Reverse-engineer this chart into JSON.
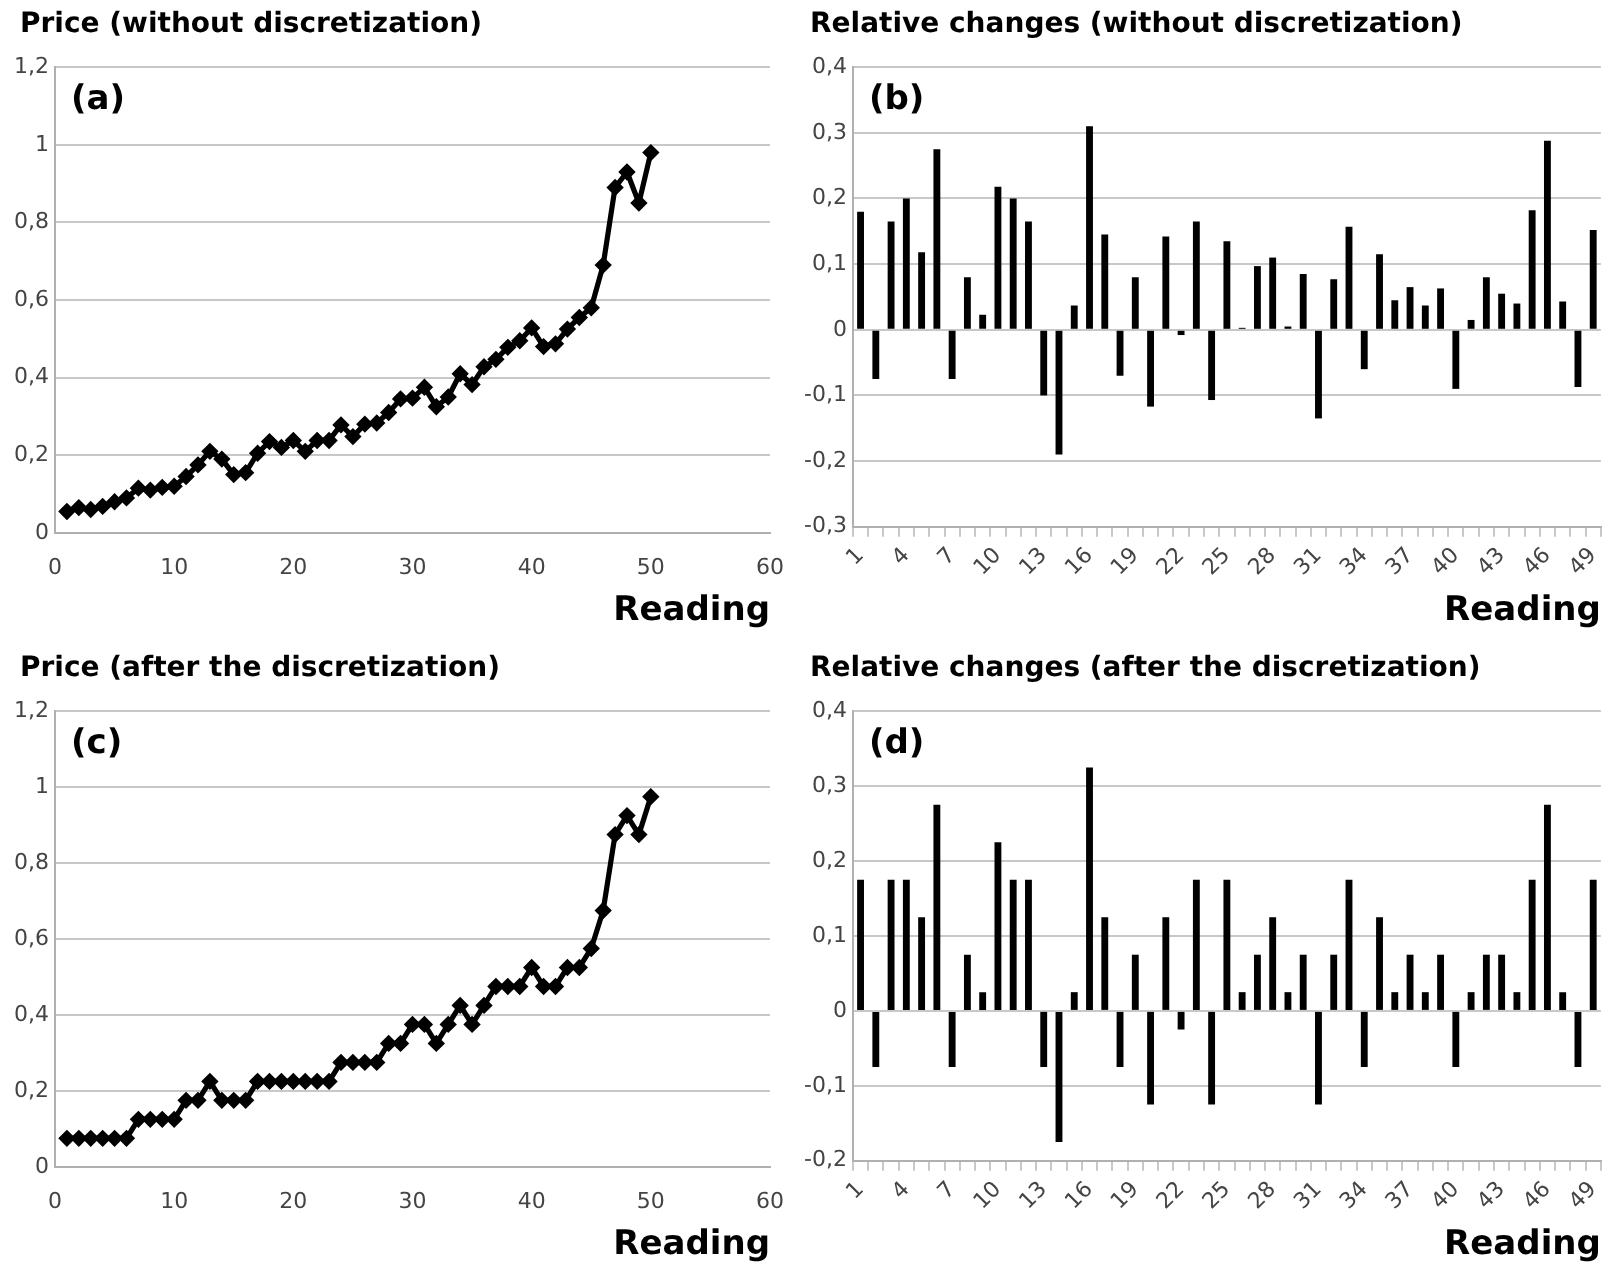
{
  "chart_data": [
    {
      "type": "line",
      "title": "Price (without discretization)",
      "xlabel": "Reading",
      "annotations": [
        "(a)"
      ],
      "grid": "y",
      "legend": false,
      "marker": "diamond",
      "line_style": "solid",
      "xlim": [
        0,
        60
      ],
      "xticks": [
        0,
        10,
        20,
        30,
        40,
        50,
        60
      ],
      "ylim": [
        0,
        1.2
      ],
      "yticks": [
        {
          "value": 0,
          "label": "0"
        },
        {
          "value": 0.2,
          "label": "0,2"
        },
        {
          "value": 0.4,
          "label": "0,4"
        },
        {
          "value": 0.6,
          "label": "0,6"
        },
        {
          "value": 0.8,
          "label": "0,8"
        },
        {
          "value": 1,
          "label": "1"
        },
        {
          "value": 1.2,
          "label": "1,2"
        }
      ],
      "series": [
        {
          "color": "#000000",
          "x": [
            1,
            2,
            3,
            4,
            5,
            6,
            7,
            8,
            9,
            10,
            11,
            12,
            13,
            14,
            15,
            16,
            17,
            18,
            19,
            20,
            21,
            22,
            23,
            24,
            25,
            26,
            27,
            28,
            29,
            30,
            31,
            32,
            33,
            34,
            35,
            36,
            37,
            38,
            39,
            40,
            41,
            42,
            43,
            44,
            45,
            46,
            47,
            48,
            49,
            50
          ],
          "values": [
            0.055,
            0.065,
            0.06,
            0.068,
            0.08,
            0.09,
            0.115,
            0.11,
            0.117,
            0.12,
            0.145,
            0.175,
            0.21,
            0.19,
            0.15,
            0.155,
            0.205,
            0.235,
            0.22,
            0.238,
            0.21,
            0.238,
            0.238,
            0.278,
            0.248,
            0.28,
            0.283,
            0.31,
            0.345,
            0.347,
            0.375,
            0.325,
            0.35,
            0.41,
            0.382,
            0.428,
            0.447,
            0.478,
            0.495,
            0.528,
            0.48,
            0.487,
            0.525,
            0.555,
            0.58,
            0.69,
            0.89,
            0.93,
            0.85,
            0.98
          ]
        }
      ]
    },
    {
      "type": "bar",
      "title": "Relative changes (without discretization)",
      "xlabel": "Reading",
      "annotations": [
        "(b)"
      ],
      "grid": "y",
      "legend": false,
      "ylim": [
        -0.3,
        0.4
      ],
      "yticks": [
        {
          "value": -0.3,
          "label": "-0,3"
        },
        {
          "value": -0.2,
          "label": "-0,2"
        },
        {
          "value": -0.1,
          "label": "-0,1"
        },
        {
          "value": 0,
          "label": "0"
        },
        {
          "value": 0.1,
          "label": "0,1"
        },
        {
          "value": 0.2,
          "label": "0,2"
        },
        {
          "value": 0.3,
          "label": "0,3"
        },
        {
          "value": 0.4,
          "label": "0,4"
        }
      ],
      "categories": [
        "1",
        null,
        null,
        "4",
        null,
        null,
        "7",
        null,
        null,
        "10",
        null,
        null,
        "13",
        null,
        null,
        "16",
        null,
        null,
        "19",
        null,
        null,
        "22",
        null,
        null,
        "25",
        null,
        null,
        "28",
        null,
        null,
        "31",
        null,
        null,
        "34",
        null,
        null,
        "37",
        null,
        null,
        "40",
        null,
        null,
        "43",
        null,
        null,
        "46",
        null,
        null,
        "49"
      ],
      "series": [
        {
          "color": "#000000",
          "values": [
            0.18,
            -0.075,
            0.165,
            0.2,
            0.118,
            0.275,
            -0.075,
            0.08,
            0.023,
            0.218,
            0.2,
            0.165,
            -0.1,
            -0.19,
            0.037,
            0.31,
            0.145,
            -0.07,
            0.08,
            -0.117,
            0.142,
            -0.008,
            0.165,
            -0.107,
            0.135,
            0.003,
            0.097,
            0.11,
            0.005,
            0.085,
            -0.135,
            0.077,
            0.157,
            -0.06,
            0.115,
            0.045,
            0.065,
            0.037,
            0.063,
            -0.09,
            0.015,
            0.08,
            0.055,
            0.04,
            0.182,
            0.288,
            0.043,
            -0.087,
            0.152
          ]
        }
      ]
    },
    {
      "type": "line",
      "title": "Price (after the discretization)",
      "xlabel": "Reading",
      "annotations": [
        "(c)"
      ],
      "grid": "y",
      "legend": false,
      "marker": "diamond",
      "line_style": "solid",
      "xlim": [
        0,
        60
      ],
      "xticks": [
        0,
        10,
        20,
        30,
        40,
        50,
        60
      ],
      "ylim": [
        0,
        1.2
      ],
      "yticks": [
        {
          "value": 0,
          "label": "0"
        },
        {
          "value": 0.2,
          "label": "0,2"
        },
        {
          "value": 0.4,
          "label": "0,4"
        },
        {
          "value": 0.6,
          "label": "0,6"
        },
        {
          "value": 0.8,
          "label": "0,8"
        },
        {
          "value": 1,
          "label": "1"
        },
        {
          "value": 1.2,
          "label": "1,2"
        }
      ],
      "series": [
        {
          "color": "#000000",
          "x": [
            1,
            2,
            3,
            4,
            5,
            6,
            7,
            8,
            9,
            10,
            11,
            12,
            13,
            14,
            15,
            16,
            17,
            18,
            19,
            20,
            21,
            22,
            23,
            24,
            25,
            26,
            27,
            28,
            29,
            30,
            31,
            32,
            33,
            34,
            35,
            36,
            37,
            38,
            39,
            40,
            41,
            42,
            43,
            44,
            45,
            46,
            47,
            48,
            49,
            50
          ],
          "values": [
            0.075,
            0.075,
            0.075,
            0.075,
            0.075,
            0.075,
            0.125,
            0.125,
            0.125,
            0.125,
            0.175,
            0.175,
            0.225,
            0.175,
            0.175,
            0.175,
            0.225,
            0.225,
            0.225,
            0.225,
            0.225,
            0.225,
            0.225,
            0.275,
            0.275,
            0.275,
            0.275,
            0.325,
            0.325,
            0.375,
            0.375,
            0.325,
            0.375,
            0.425,
            0.375,
            0.425,
            0.475,
            0.475,
            0.475,
            0.525,
            0.475,
            0.475,
            0.525,
            0.525,
            0.575,
            0.675,
            0.875,
            0.925,
            0.875,
            0.975
          ]
        }
      ]
    },
    {
      "type": "bar",
      "title": "Relative changes (after the discretization)",
      "xlabel": "Reading",
      "annotations": [
        "(d)"
      ],
      "grid": "y",
      "legend": false,
      "ylim": [
        -0.2,
        0.4
      ],
      "yticks": [
        {
          "value": -0.2,
          "label": "-0,2"
        },
        {
          "value": -0.1,
          "label": "-0,1"
        },
        {
          "value": 0,
          "label": "0"
        },
        {
          "value": 0.1,
          "label": "0,1"
        },
        {
          "value": 0.2,
          "label": "0,2"
        },
        {
          "value": 0.3,
          "label": "0,3"
        },
        {
          "value": 0.4,
          "label": "0,4"
        }
      ],
      "categories": [
        "1",
        null,
        null,
        "4",
        null,
        null,
        "7",
        null,
        null,
        "10",
        null,
        null,
        "13",
        null,
        null,
        "16",
        null,
        null,
        "19",
        null,
        null,
        "22",
        null,
        null,
        "25",
        null,
        null,
        "28",
        null,
        null,
        "31",
        null,
        null,
        "34",
        null,
        null,
        "37",
        null,
        null,
        "40",
        null,
        null,
        "43",
        null,
        null,
        "46",
        null,
        null,
        "49"
      ],
      "series": [
        {
          "color": "#000000",
          "values": [
            0.175,
            -0.075,
            0.175,
            0.175,
            0.125,
            0.275,
            -0.075,
            0.075,
            0.025,
            0.225,
            0.175,
            0.175,
            -0.075,
            -0.175,
            0.025,
            0.325,
            0.125,
            -0.075,
            0.075,
            -0.125,
            0.125,
            -0.025,
            0.175,
            -0.125,
            0.175,
            0.025,
            0.075,
            0.125,
            0.025,
            0.075,
            -0.125,
            0.075,
            0.175,
            -0.075,
            0.125,
            0.025,
            0.075,
            0.025,
            0.075,
            -0.075,
            0.025,
            0.075,
            0.075,
            0.025,
            0.175,
            0.275,
            0.025,
            -0.075,
            0.175
          ]
        }
      ]
    }
  ]
}
